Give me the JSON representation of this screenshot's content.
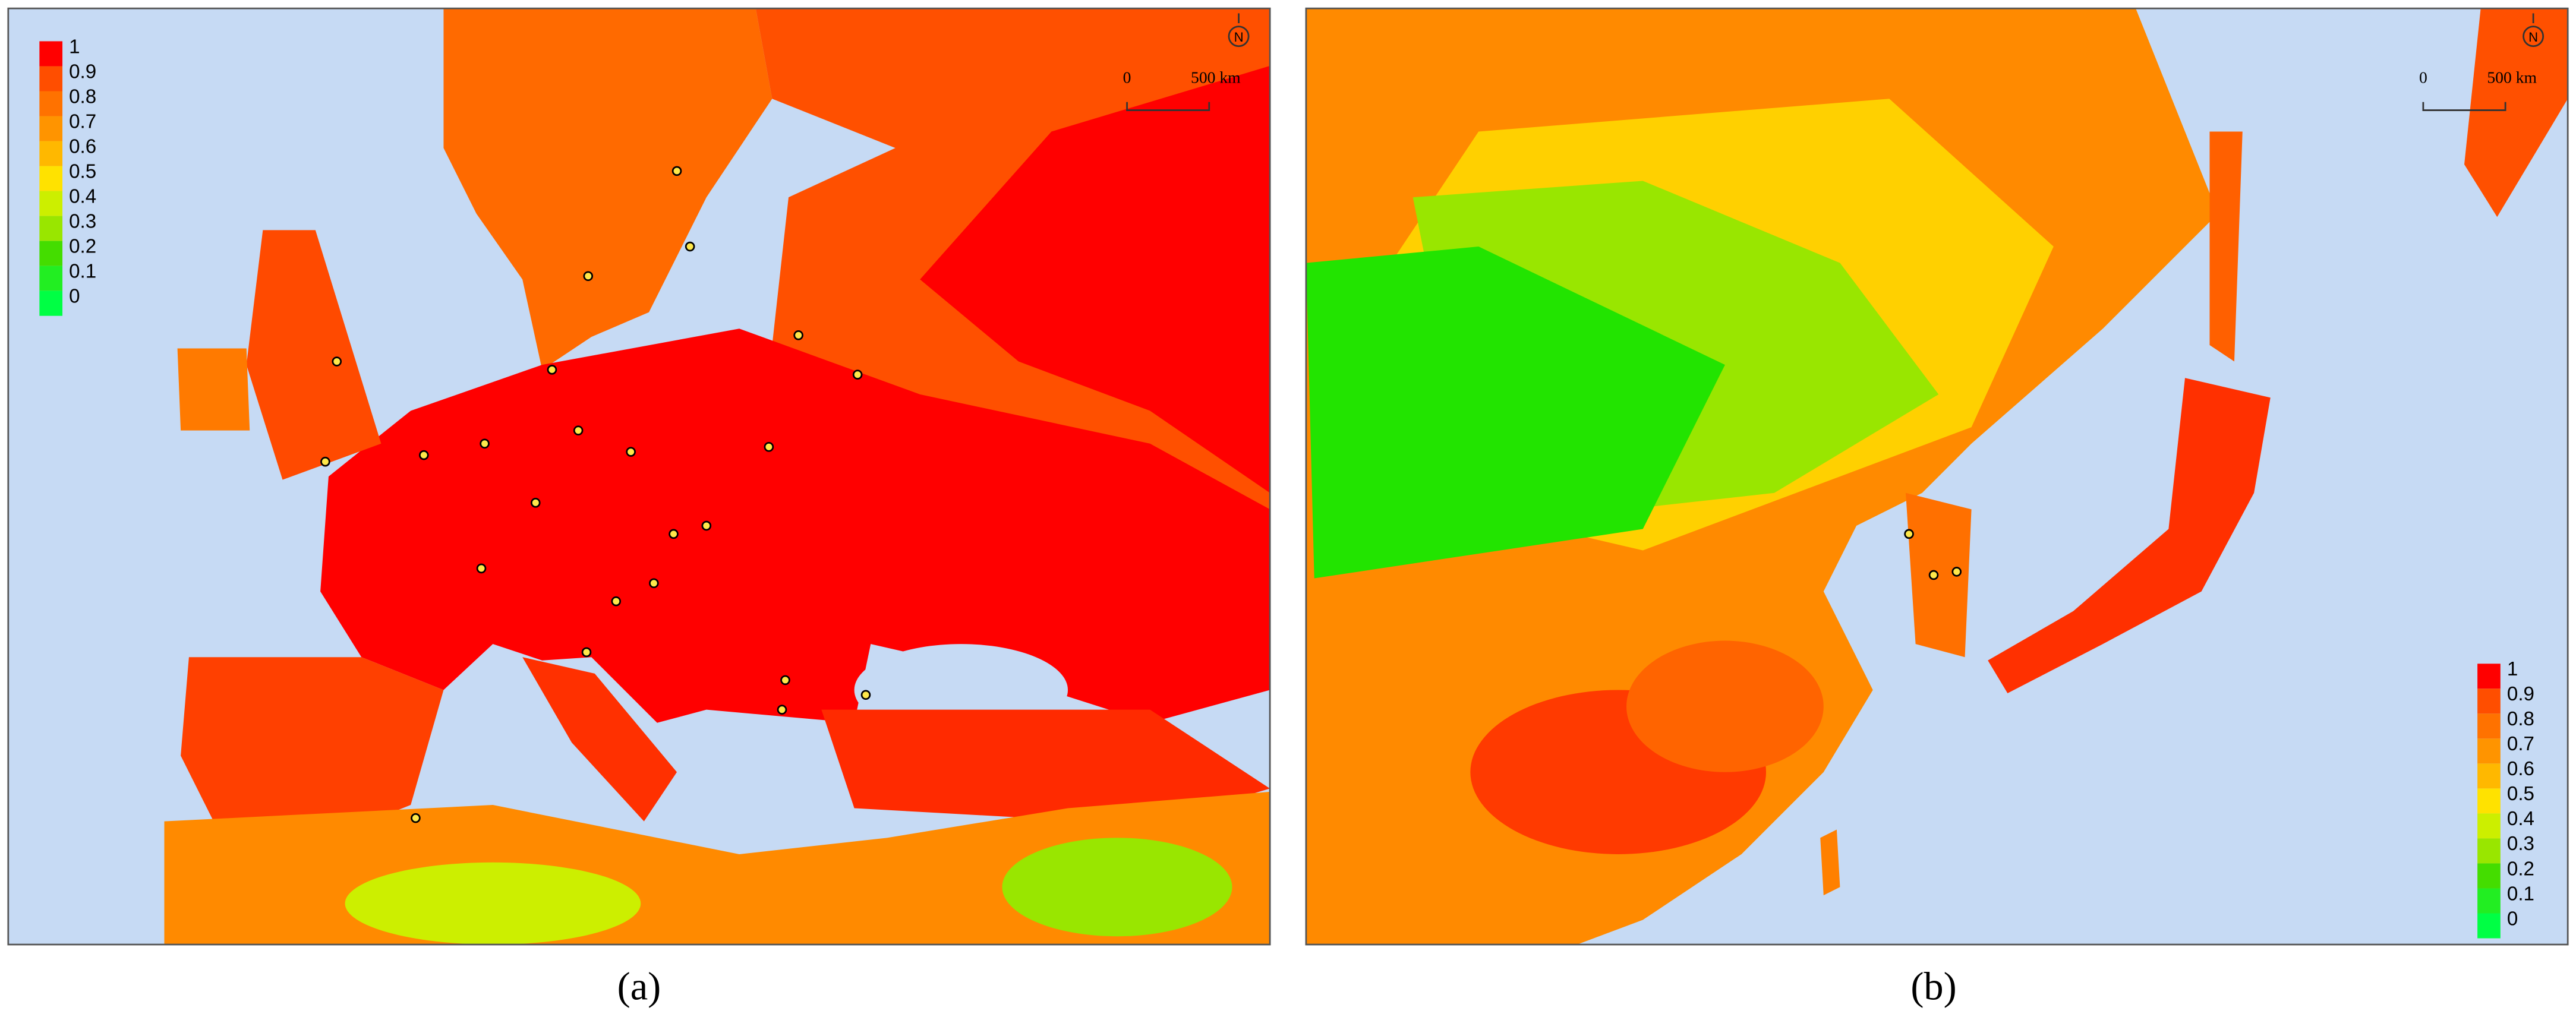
{
  "panels": [
    {
      "label": "(a)",
      "legend": [
        "1",
        "0.9",
        "0.8",
        "0.7",
        "0.6",
        "0.5",
        "0.4",
        "0.3",
        "0.2",
        "0.1",
        "0"
      ],
      "scale": {
        "start": "0",
        "end": "500 km"
      },
      "north": "N"
    },
    {
      "label": "(b)",
      "legend": [
        "1",
        "0.9",
        "0.8",
        "0.7",
        "0.6",
        "0.5",
        "0.4",
        "0.3",
        "0.2",
        "0.1",
        "0"
      ],
      "scale": {
        "start": "0",
        "end": "500 km"
      },
      "north": "N"
    }
  ],
  "legend_colors": [
    "#ff0000",
    "#ff4e00",
    "#ff7200",
    "#ff9400",
    "#ffb800",
    "#ffe200",
    "#ccef00",
    "#99e600",
    "#44dd00",
    "#22ee22",
    "#00ff44"
  ]
}
